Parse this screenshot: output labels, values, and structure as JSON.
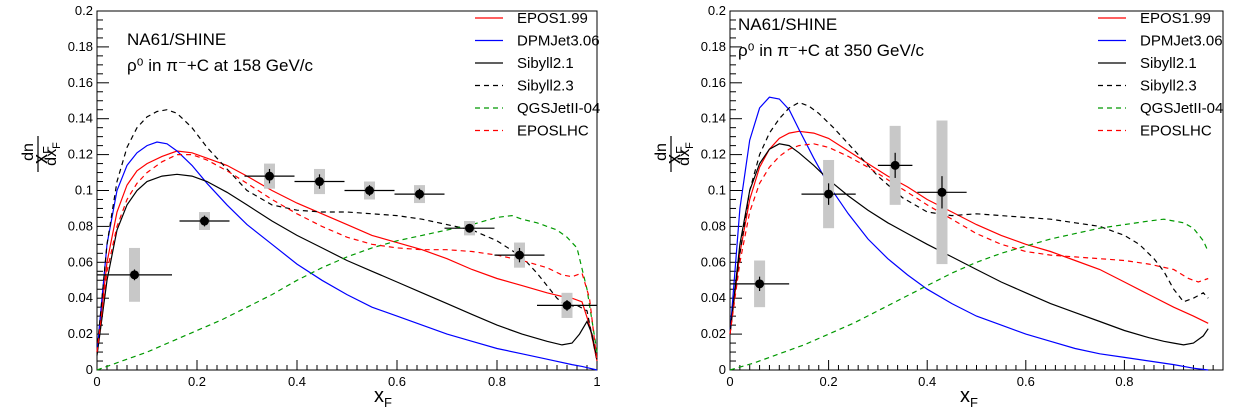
{
  "chart_data": [
    {
      "type": "line",
      "title": "NA61/SHINE",
      "subtitle": "ρ⁰ in π⁻+C at 158 GeV/c",
      "xlabel": "xF",
      "ylabel": "xF dn/dxF",
      "xlim": [
        0,
        1
      ],
      "ylim": [
        0,
        0.2
      ],
      "x_ticks": [
        "0",
        "0.2",
        "0.4",
        "0.6",
        "0.8",
        "1"
      ],
      "y_ticks": [
        "0",
        "0.02",
        "0.04",
        "0.06",
        "0.08",
        "0.1",
        "0.12",
        "0.14",
        "0.16",
        "0.18",
        "0.2"
      ],
      "legend_position": "top-right",
      "series": [
        {
          "name": "EPOS1.99",
          "color": "#ff0000",
          "dash": "solid",
          "x": [
            0.0,
            0.02,
            0.04,
            0.06,
            0.08,
            0.1,
            0.13,
            0.16,
            0.19,
            0.22,
            0.26,
            0.3,
            0.35,
            0.4,
            0.45,
            0.5,
            0.55,
            0.6,
            0.65,
            0.7,
            0.75,
            0.8,
            0.85,
            0.9,
            0.93,
            0.95,
            0.97,
            0.985,
            1.0
          ],
          "y": [
            0.01,
            0.06,
            0.088,
            0.103,
            0.111,
            0.115,
            0.119,
            0.122,
            0.121,
            0.118,
            0.114,
            0.108,
            0.1,
            0.093,
            0.087,
            0.081,
            0.075,
            0.071,
            0.067,
            0.062,
            0.056,
            0.051,
            0.047,
            0.043,
            0.041,
            0.04,
            0.038,
            0.025,
            0.005
          ]
        },
        {
          "name": "DPMJet3.06",
          "color": "#0000ff",
          "dash": "solid",
          "x": [
            0.0,
            0.02,
            0.04,
            0.06,
            0.08,
            0.1,
            0.12,
            0.14,
            0.16,
            0.19,
            0.22,
            0.26,
            0.3,
            0.35,
            0.4,
            0.45,
            0.5,
            0.55,
            0.6,
            0.65,
            0.7,
            0.75,
            0.8,
            0.85,
            0.9,
            0.95,
            0.97,
            0.985,
            1.0
          ],
          "y": [
            0.01,
            0.07,
            0.1,
            0.114,
            0.121,
            0.125,
            0.127,
            0.126,
            0.122,
            0.114,
            0.104,
            0.092,
            0.081,
            0.07,
            0.059,
            0.05,
            0.042,
            0.035,
            0.03,
            0.025,
            0.02,
            0.016,
            0.012,
            0.009,
            0.006,
            0.003,
            0.002,
            0.001,
            0.0
          ]
        },
        {
          "name": "Sibyll2.1",
          "color": "#000000",
          "dash": "solid",
          "x": [
            0.0,
            0.02,
            0.04,
            0.06,
            0.08,
            0.1,
            0.13,
            0.16,
            0.19,
            0.22,
            0.26,
            0.3,
            0.35,
            0.4,
            0.45,
            0.5,
            0.55,
            0.6,
            0.65,
            0.7,
            0.75,
            0.8,
            0.85,
            0.9,
            0.93,
            0.95,
            0.965,
            0.98,
            0.99,
            1.0
          ],
          "y": [
            0.008,
            0.05,
            0.078,
            0.092,
            0.1,
            0.105,
            0.108,
            0.109,
            0.108,
            0.105,
            0.099,
            0.092,
            0.083,
            0.075,
            0.068,
            0.061,
            0.055,
            0.049,
            0.043,
            0.037,
            0.031,
            0.025,
            0.02,
            0.016,
            0.014,
            0.015,
            0.02,
            0.027,
            0.02,
            0.006
          ]
        },
        {
          "name": "Sibyll2.3",
          "color": "#000000",
          "dash": "dashed",
          "x": [
            0.0,
            0.02,
            0.04,
            0.06,
            0.08,
            0.1,
            0.12,
            0.14,
            0.16,
            0.19,
            0.22,
            0.26,
            0.3,
            0.35,
            0.4,
            0.45,
            0.5,
            0.55,
            0.6,
            0.65,
            0.7,
            0.75,
            0.8,
            0.85,
            0.88,
            0.9,
            0.92,
            0.94,
            0.96,
            0.98,
            1.0
          ],
          "y": [
            0.01,
            0.07,
            0.105,
            0.124,
            0.135,
            0.141,
            0.144,
            0.145,
            0.143,
            0.135,
            0.124,
            0.112,
            0.1,
            0.092,
            0.089,
            0.088,
            0.088,
            0.087,
            0.086,
            0.084,
            0.081,
            0.078,
            0.072,
            0.063,
            0.054,
            0.047,
            0.04,
            0.035,
            0.036,
            0.033,
            0.005
          ]
        },
        {
          "name": "QGSJetII-04",
          "color": "#009900",
          "dash": "dashed",
          "x": [
            0.0,
            0.05,
            0.1,
            0.15,
            0.2,
            0.25,
            0.3,
            0.35,
            0.4,
            0.45,
            0.5,
            0.55,
            0.6,
            0.65,
            0.7,
            0.75,
            0.8,
            0.83,
            0.85,
            0.88,
            0.9,
            0.92,
            0.94,
            0.96,
            0.98,
            1.0
          ],
          "y": [
            0.0,
            0.005,
            0.01,
            0.016,
            0.022,
            0.028,
            0.035,
            0.042,
            0.05,
            0.057,
            0.063,
            0.068,
            0.072,
            0.075,
            0.078,
            0.081,
            0.085,
            0.086,
            0.084,
            0.082,
            0.08,
            0.078,
            0.074,
            0.068,
            0.045,
            0.01
          ]
        },
        {
          "name": "EPOSLHC",
          "color": "#ff0000",
          "dash": "dashed",
          "x": [
            0.0,
            0.02,
            0.04,
            0.06,
            0.08,
            0.1,
            0.13,
            0.16,
            0.19,
            0.22,
            0.26,
            0.3,
            0.35,
            0.4,
            0.45,
            0.5,
            0.55,
            0.6,
            0.65,
            0.7,
            0.75,
            0.8,
            0.85,
            0.9,
            0.93,
            0.95,
            0.97,
            0.985,
            1.0
          ],
          "y": [
            0.01,
            0.055,
            0.08,
            0.095,
            0.104,
            0.11,
            0.116,
            0.12,
            0.12,
            0.117,
            0.111,
            0.104,
            0.095,
            0.087,
            0.08,
            0.074,
            0.07,
            0.068,
            0.067,
            0.067,
            0.066,
            0.064,
            0.061,
            0.057,
            0.053,
            0.052,
            0.054,
            0.04,
            0.005
          ]
        }
      ],
      "measurements": {
        "x": [
          0.075,
          0.215,
          0.345,
          0.445,
          0.545,
          0.645,
          0.745,
          0.845,
          0.94
        ],
        "y": [
          0.053,
          0.083,
          0.108,
          0.105,
          0.1,
          0.098,
          0.079,
          0.064,
          0.036
        ],
        "x_err": [
          0.075,
          0.05,
          0.05,
          0.05,
          0.05,
          0.05,
          0.05,
          0.05,
          0.06
        ],
        "y_err": [
          0.003,
          0.003,
          0.004,
          0.004,
          0.003,
          0.003,
          0.002,
          0.004,
          0.003
        ],
        "sys_err": [
          0.015,
          0.005,
          0.007,
          0.007,
          0.005,
          0.005,
          0.004,
          0.007,
          0.007
        ]
      }
    },
    {
      "type": "line",
      "title": "NA61/SHINE",
      "subtitle": "ρ⁰ in π⁻+C at 350 GeV/c",
      "xlabel": "xF",
      "ylabel": "xF dn/dxF",
      "xlim": [
        0,
        1
      ],
      "ylim": [
        0,
        0.2
      ],
      "x_ticks": [
        "0",
        "0.2",
        "0.4",
        "0.6",
        "0.8"
      ],
      "y_ticks": [
        "0",
        "0.02",
        "0.04",
        "0.06",
        "0.08",
        "0.1",
        "0.12",
        "0.14",
        "0.16",
        "0.18",
        "0.2"
      ],
      "legend_position": "top-right",
      "series": [
        {
          "name": "EPOS1.99",
          "color": "#ff0000",
          "dash": "solid",
          "x": [
            0.0,
            0.02,
            0.04,
            0.06,
            0.08,
            0.1,
            0.12,
            0.14,
            0.17,
            0.2,
            0.24,
            0.28,
            0.32,
            0.36,
            0.4,
            0.45,
            0.5,
            0.55,
            0.6,
            0.65,
            0.7,
            0.75,
            0.8,
            0.85,
            0.9,
            0.94,
            0.97
          ],
          "y": [
            0.02,
            0.065,
            0.095,
            0.113,
            0.123,
            0.129,
            0.132,
            0.133,
            0.132,
            0.129,
            0.122,
            0.115,
            0.108,
            0.102,
            0.095,
            0.088,
            0.081,
            0.075,
            0.07,
            0.066,
            0.061,
            0.056,
            0.049,
            0.042,
            0.035,
            0.03,
            0.026
          ]
        },
        {
          "name": "DPMJet3.06",
          "color": "#0000ff",
          "dash": "solid",
          "x": [
            0.0,
            0.02,
            0.04,
            0.06,
            0.08,
            0.1,
            0.12,
            0.14,
            0.17,
            0.2,
            0.24,
            0.28,
            0.32,
            0.36,
            0.4,
            0.45,
            0.5,
            0.55,
            0.6,
            0.65,
            0.7,
            0.75,
            0.8,
            0.85,
            0.9,
            0.94,
            0.97
          ],
          "y": [
            0.02,
            0.09,
            0.128,
            0.146,
            0.152,
            0.151,
            0.145,
            0.134,
            0.118,
            0.103,
            0.087,
            0.073,
            0.062,
            0.053,
            0.045,
            0.037,
            0.03,
            0.025,
            0.02,
            0.016,
            0.012,
            0.009,
            0.007,
            0.005,
            0.003,
            0.001,
            0.0
          ]
        },
        {
          "name": "Sibyll2.1",
          "color": "#000000",
          "dash": "solid",
          "x": [
            0.0,
            0.02,
            0.04,
            0.06,
            0.08,
            0.1,
            0.12,
            0.14,
            0.17,
            0.2,
            0.24,
            0.28,
            0.32,
            0.36,
            0.4,
            0.45,
            0.5,
            0.55,
            0.6,
            0.65,
            0.7,
            0.75,
            0.8,
            0.85,
            0.88,
            0.9,
            0.92,
            0.94,
            0.96,
            0.97
          ],
          "y": [
            0.02,
            0.07,
            0.1,
            0.115,
            0.123,
            0.126,
            0.125,
            0.121,
            0.114,
            0.106,
            0.097,
            0.089,
            0.082,
            0.076,
            0.07,
            0.063,
            0.056,
            0.049,
            0.043,
            0.037,
            0.032,
            0.027,
            0.022,
            0.018,
            0.016,
            0.015,
            0.014,
            0.015,
            0.019,
            0.023
          ]
        },
        {
          "name": "Sibyll2.3",
          "color": "#000000",
          "dash": "dashed",
          "x": [
            0.0,
            0.02,
            0.04,
            0.06,
            0.08,
            0.1,
            0.12,
            0.14,
            0.16,
            0.18,
            0.21,
            0.25,
            0.3,
            0.35,
            0.4,
            0.45,
            0.5,
            0.55,
            0.6,
            0.65,
            0.7,
            0.75,
            0.8,
            0.83,
            0.86,
            0.88,
            0.9,
            0.92,
            0.94,
            0.96,
            0.97
          ],
          "y": [
            0.02,
            0.065,
            0.1,
            0.12,
            0.132,
            0.14,
            0.146,
            0.149,
            0.147,
            0.143,
            0.135,
            0.123,
            0.108,
            0.096,
            0.088,
            0.086,
            0.087,
            0.086,
            0.085,
            0.084,
            0.082,
            0.08,
            0.075,
            0.07,
            0.062,
            0.055,
            0.045,
            0.038,
            0.04,
            0.043,
            0.04
          ]
        },
        {
          "name": "QGSJetII-04",
          "color": "#009900",
          "dash": "dashed",
          "x": [
            0.0,
            0.05,
            0.1,
            0.15,
            0.2,
            0.25,
            0.3,
            0.35,
            0.4,
            0.45,
            0.5,
            0.55,
            0.6,
            0.65,
            0.7,
            0.75,
            0.8,
            0.85,
            0.88,
            0.9,
            0.92,
            0.94,
            0.96,
            0.97
          ],
          "y": [
            0.0,
            0.004,
            0.009,
            0.014,
            0.02,
            0.026,
            0.033,
            0.04,
            0.047,
            0.054,
            0.06,
            0.065,
            0.069,
            0.073,
            0.076,
            0.079,
            0.081,
            0.083,
            0.084,
            0.083,
            0.082,
            0.079,
            0.072,
            0.066
          ]
        },
        {
          "name": "EPOSLHC",
          "color": "#ff0000",
          "dash": "dashed",
          "x": [
            0.0,
            0.02,
            0.04,
            0.06,
            0.08,
            0.1,
            0.12,
            0.14,
            0.17,
            0.2,
            0.24,
            0.28,
            0.32,
            0.36,
            0.4,
            0.45,
            0.5,
            0.55,
            0.6,
            0.65,
            0.7,
            0.75,
            0.8,
            0.85,
            0.9,
            0.93,
            0.95,
            0.97
          ],
          "y": [
            0.02,
            0.06,
            0.088,
            0.104,
            0.113,
            0.119,
            0.123,
            0.125,
            0.126,
            0.124,
            0.119,
            0.113,
            0.106,
            0.099,
            0.092,
            0.084,
            0.076,
            0.07,
            0.066,
            0.064,
            0.063,
            0.062,
            0.061,
            0.059,
            0.056,
            0.051,
            0.049,
            0.051
          ]
        }
      ],
      "measurements": {
        "x": [
          0.06,
          0.2,
          0.335,
          0.43
        ],
        "y": [
          0.048,
          0.098,
          0.114,
          0.099
        ],
        "x_err": [
          0.06,
          0.055,
          0.035,
          0.05
        ],
        "y_err": [
          0.004,
          0.006,
          0.007,
          0.009
        ],
        "sys_err": [
          0.013,
          0.019,
          0.022,
          0.04
        ]
      }
    }
  ]
}
